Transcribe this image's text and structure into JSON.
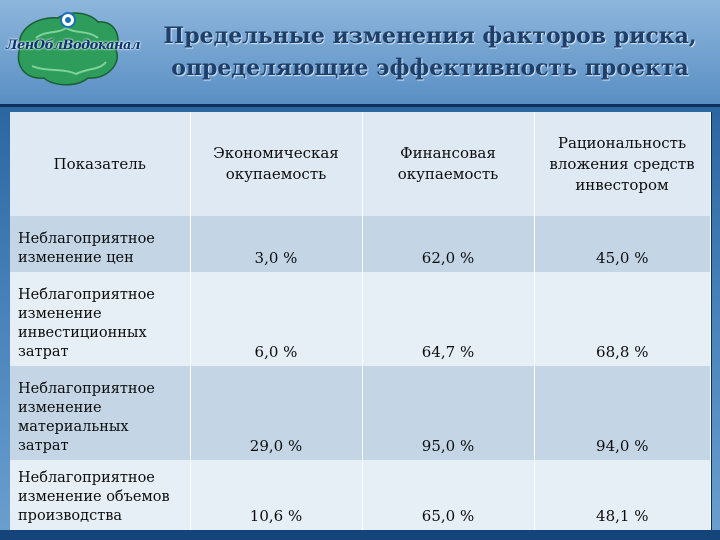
{
  "logo": {
    "text": "ЛенОблВодоканал"
  },
  "slide": {
    "title_line1": "Предельные изменения факторов риска,",
    "title_line2": "определяющие эффективность проекта"
  },
  "table": {
    "headers": [
      "Показатель",
      "Экономическая окупаемость",
      "Финансовая окупаемость",
      "Рациональность вложения средств инвестором"
    ],
    "rows": [
      {
        "label": "Неблагоприятное изменение цен",
        "values": [
          "3,0 %",
          "62,0 %",
          "45,0 %"
        ]
      },
      {
        "label": "Неблагоприятное изменение инвестиционных затрат",
        "values": [
          "6,0 %",
          "64,7 %",
          "68,8 %"
        ]
      },
      {
        "label": "Неблагоприятное изменение материальных затрат",
        "values": [
          "29,0 %",
          "95,0 %",
          "94,0 %"
        ]
      },
      {
        "label": "Неблагоприятное изменение объемов производства",
        "values": [
          "10,6 %",
          "65,0 %",
          "48,1 %"
        ]
      }
    ]
  },
  "colors": {
    "header_bg": "#5a8fc4",
    "row_dark": "#c4d6e6",
    "row_light": "#e6eef6"
  }
}
